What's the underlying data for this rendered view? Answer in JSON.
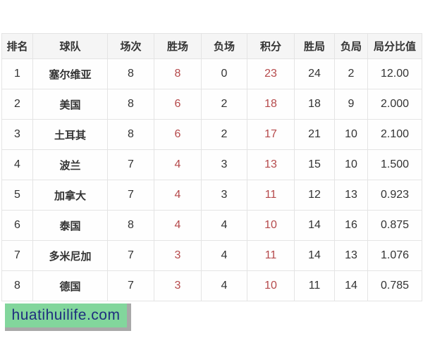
{
  "table": {
    "headers": [
      "排名",
      "球队",
      "场次",
      "胜场",
      "负场",
      "积分",
      "胜局",
      "负局",
      "局分比值"
    ],
    "rows": [
      {
        "rank": "1",
        "team": "塞尔维亚",
        "played": "8",
        "wins": "8",
        "losses": "0",
        "points": "23",
        "sets_won": "24",
        "sets_lost": "2",
        "ratio": "12.00"
      },
      {
        "rank": "2",
        "team": "美国",
        "played": "8",
        "wins": "6",
        "losses": "2",
        "points": "18",
        "sets_won": "18",
        "sets_lost": "9",
        "ratio": "2.000"
      },
      {
        "rank": "3",
        "team": "土耳其",
        "played": "8",
        "wins": "6",
        "losses": "2",
        "points": "17",
        "sets_won": "21",
        "sets_lost": "10",
        "ratio": "2.100"
      },
      {
        "rank": "4",
        "team": "波兰",
        "played": "7",
        "wins": "4",
        "losses": "3",
        "points": "13",
        "sets_won": "15",
        "sets_lost": "10",
        "ratio": "1.500"
      },
      {
        "rank": "5",
        "team": "加拿大",
        "played": "7",
        "wins": "4",
        "losses": "3",
        "points": "11",
        "sets_won": "12",
        "sets_lost": "13",
        "ratio": "0.923"
      },
      {
        "rank": "6",
        "team": "泰国",
        "played": "8",
        "wins": "4",
        "losses": "4",
        "points": "10",
        "sets_won": "14",
        "sets_lost": "16",
        "ratio": "0.875"
      },
      {
        "rank": "7",
        "team": "多米尼加",
        "played": "7",
        "wins": "3",
        "losses": "4",
        "points": "11",
        "sets_won": "14",
        "sets_lost": "13",
        "ratio": "1.076"
      },
      {
        "rank": "8",
        "team": "德国",
        "played": "7",
        "wins": "3",
        "losses": "4",
        "points": "10",
        "sets_won": "11",
        "sets_lost": "14",
        "ratio": "0.785"
      }
    ],
    "colors": {
      "highlight_red": "#b5494b",
      "text": "#333333",
      "border": "#e4e4e4",
      "header_bg": "#f5f5f5"
    }
  },
  "watermark": {
    "text": "huatihuilife.com",
    "bg": "#82d69c",
    "shadow": "#a8a8a8",
    "text_color": "#1f2e7e"
  }
}
